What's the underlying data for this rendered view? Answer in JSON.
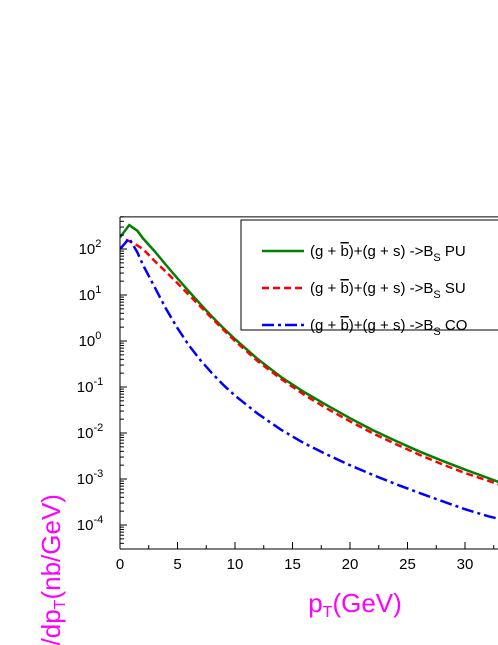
{
  "chart_data": {
    "type": "line",
    "title": "",
    "xlabel": {
      "base": "p",
      "sub": "T",
      "rest": "(GeV)"
    },
    "ylabel": {
      "a": "dσ/dp",
      "sub": "T",
      "b": "(nb/GeV)"
    },
    "axis_label_color": "#ff00ff",
    "xlim": [
      0,
      33
    ],
    "ylim": [
      3e-05,
      500
    ],
    "yscale": "log",
    "x_ticks": [
      0,
      5,
      10,
      15,
      20,
      25,
      30
    ],
    "y_ticks": [
      {
        "value": 0.0001,
        "base": "10",
        "exp": "-4"
      },
      {
        "value": 0.001,
        "base": "10",
        "exp": "-3"
      },
      {
        "value": 0.01,
        "base": "10",
        "exp": "-2"
      },
      {
        "value": 0.1,
        "base": "10",
        "exp": "-1"
      },
      {
        "value": 1,
        "base": "10",
        "exp": "0"
      },
      {
        "value": 10,
        "base": "10",
        "exp": "1"
      },
      {
        "value": 100,
        "base": "10",
        "exp": "2"
      }
    ],
    "grid": false,
    "legend_position": "top-right",
    "series": [
      {
        "name": "(g + b̄)+(g + s) ->Bs PU",
        "legend": {
          "a": "(g + ",
          "bbar": "b",
          "b": ")+(g + s) ->B",
          "sub": "S",
          "c": " PU"
        },
        "color": "#008000",
        "dash": "solid",
        "x": [
          0,
          0.8,
          1.5,
          2,
          3,
          4,
          5,
          6,
          7,
          8,
          9,
          10,
          12,
          14,
          16,
          18,
          20,
          22,
          24,
          26,
          28,
          30,
          32,
          33
        ],
        "y": [
          180,
          330,
          250,
          170,
          90,
          45,
          23,
          12,
          6.3,
          3.4,
          1.9,
          1.1,
          0.4,
          0.165,
          0.078,
          0.04,
          0.021,
          0.0115,
          0.0067,
          0.004,
          0.0025,
          0.0016,
          0.00105,
          0.00085
        ]
      },
      {
        "name": "(g + b̄)+(g + s) ->Bs SU",
        "legend": {
          "a": "(g + ",
          "bbar": "b",
          "b": ")+(g + s) ->B",
          "sub": "S",
          "c": " SU"
        },
        "color": "#ff0000",
        "dash": "dashed",
        "x": [
          0.5,
          1,
          1.5,
          2,
          3,
          4,
          5,
          6,
          7,
          8,
          9,
          10,
          12,
          14,
          16,
          18,
          20,
          22,
          24,
          26,
          28,
          30,
          32,
          33
        ],
        "y": [
          160,
          140,
          120,
          100,
          55,
          32,
          18,
          10,
          5.6,
          3.1,
          1.75,
          1.0,
          0.36,
          0.15,
          0.068,
          0.034,
          0.018,
          0.0098,
          0.0057,
          0.0034,
          0.0021,
          0.00135,
          0.00092,
          0.00075
        ]
      },
      {
        "name": "(g + b̄)+(g + s) ->Bs CO",
        "legend": {
          "a": "(g + ",
          "bbar": "b",
          "b": ")+(g + s) ->B",
          "sub": "S",
          "c": " CO"
        },
        "color": "#0000ff",
        "dash": "dashdot",
        "x": [
          0,
          0.8,
          1.5,
          2,
          3,
          4,
          5,
          6,
          7,
          8,
          9,
          10,
          12,
          14,
          16,
          18,
          20,
          22,
          24,
          26,
          28,
          30,
          32,
          33
        ],
        "y": [
          100,
          170,
          85,
          45,
          15,
          5.0,
          1.9,
          0.8,
          0.38,
          0.2,
          0.11,
          0.065,
          0.026,
          0.0118,
          0.006,
          0.0034,
          0.002,
          0.00122,
          0.00077,
          0.0005,
          0.00033,
          0.00022,
          0.000155,
          0.000135
        ]
      }
    ]
  }
}
